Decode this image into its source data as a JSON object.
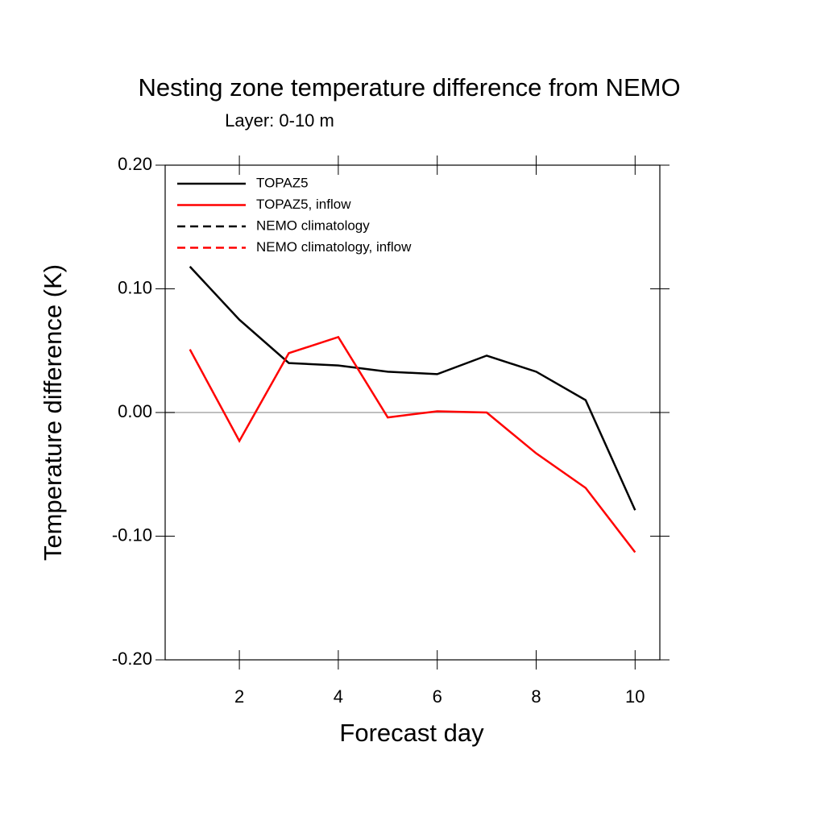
{
  "chart_data": {
    "type": "line",
    "title": "Nesting zone temperature difference from NEMO",
    "subtitle": "Layer: 0-10 m",
    "x_label": "Forecast day",
    "y_label": "Temperature difference (K)",
    "x": [
      1,
      2,
      3,
      4,
      5,
      6,
      7,
      8,
      9,
      10
    ],
    "series": [
      {
        "name": "TOPAZ5",
        "color": "#000000",
        "dash": false,
        "values": [
          0.118,
          0.075,
          0.04,
          0.038,
          0.033,
          0.031,
          0.046,
          0.033,
          0.01,
          -0.079
        ]
      },
      {
        "name": "TOPAZ5, inflow",
        "color": "#ff0000",
        "dash": false,
        "values": [
          0.051,
          -0.023,
          0.048,
          0.061,
          -0.004,
          0.001,
          0.0,
          -0.033,
          -0.061,
          -0.113
        ]
      },
      {
        "name": "NEMO climatology",
        "color": "#000000",
        "dash": true,
        "values": [
          null,
          null,
          null,
          null,
          null,
          null,
          null,
          null,
          null,
          null
        ]
      },
      {
        "name": "NEMO climatology, inflow",
        "color": "#ff0000",
        "dash": true,
        "values": [
          null,
          null,
          null,
          null,
          null,
          null,
          null,
          null,
          null,
          null
        ]
      }
    ],
    "xlim": [
      0.5,
      10.5
    ],
    "ylim": [
      -0.2,
      0.2
    ],
    "xticks": [
      2,
      4,
      6,
      8,
      10
    ],
    "yticks": [
      {
        "value": -0.2,
        "label": "-0.20"
      },
      {
        "value": -0.1,
        "label": "-0.10"
      },
      {
        "value": 0,
        "label": "0.00"
      },
      {
        "value": 0.1,
        "label": "0.10"
      },
      {
        "value": 0.2,
        "label": "0.20"
      }
    ],
    "reference_line": 0,
    "legend": "upper left"
  }
}
